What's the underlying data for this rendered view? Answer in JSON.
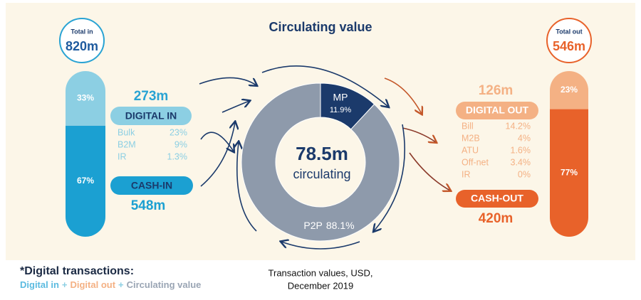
{
  "title": "Circulating value",
  "total_in": {
    "label": "Total in",
    "value": "820m"
  },
  "total_out": {
    "label": "Total out",
    "value": "546m"
  },
  "in_bar": [
    {
      "value": 33,
      "label": "33%"
    },
    {
      "value": 67,
      "label": "67%"
    }
  ],
  "out_bar": [
    {
      "value": 23,
      "label": "23%"
    },
    {
      "value": 77,
      "label": "77%"
    }
  ],
  "digital_in": {
    "amount": "273m",
    "label": "DIGITAL IN",
    "items": [
      [
        "Bulk",
        "23%"
      ],
      [
        "B2M",
        "9%"
      ],
      [
        "IR",
        "1.3%"
      ]
    ]
  },
  "cash_in": {
    "label": "CASH-IN",
    "amount": "548m"
  },
  "digital_out": {
    "amount": "126m",
    "label": "DIGITAL OUT",
    "items": [
      [
        "Bill",
        "14.2%"
      ],
      [
        "M2B",
        "4%"
      ],
      [
        "ATU",
        "1.6%"
      ],
      [
        "Off-net",
        "3.4%"
      ],
      [
        "IR",
        "0%"
      ]
    ]
  },
  "cash_out": {
    "label": "CASH-OUT",
    "amount": "420m"
  },
  "chart_data": {
    "type": "pie",
    "categories": [
      "MP",
      "P2P"
    ],
    "values": [
      11.9,
      88.1
    ],
    "value_labels": [
      "11.9%",
      "88.1%"
    ],
    "colors": [
      "#1b3a6b",
      "#8e9aab"
    ],
    "center_value": "78.5m",
    "center_label": "circulating"
  },
  "footnote": {
    "title": "*Digital transactions:",
    "parts": [
      "Digital in",
      "+",
      "Digital out",
      "+",
      "Circulating value"
    ]
  },
  "caption": [
    "Transaction values, USD,",
    "December 2019"
  ]
}
